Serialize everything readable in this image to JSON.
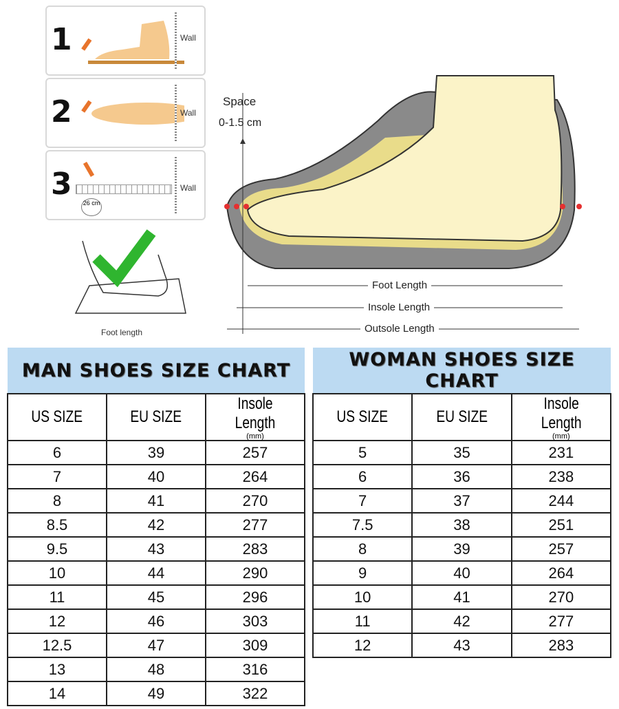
{
  "steps": [
    {
      "number": "1",
      "wall": "Wall"
    },
    {
      "number": "2",
      "wall": "Wall"
    },
    {
      "number": "3",
      "wall": "Wall",
      "ruler_reading": "26 cm"
    }
  ],
  "foot_length_caption": "Foot length",
  "diagram": {
    "space_label": "Space",
    "space_range": "0-1.5 cm",
    "foot_length": "Foot Length",
    "insole_length": "Insole Length",
    "outsole_length": "Outsole Length"
  },
  "colors": {
    "header_bg": "#bcdaf2",
    "check": "#2fb52f",
    "marker": "#e53030",
    "sole": "#8a8a8a",
    "foot": "#fbf3c8"
  },
  "man": {
    "title": "MAN SHOES SIZE CHART",
    "headers": [
      "US SIZE",
      "EU SIZE",
      "Insole Length"
    ],
    "unit": "(mm)",
    "rows": [
      [
        "6",
        "39",
        "257"
      ],
      [
        "7",
        "40",
        "264"
      ],
      [
        "8",
        "41",
        "270"
      ],
      [
        "8.5",
        "42",
        "277"
      ],
      [
        "9.5",
        "43",
        "283"
      ],
      [
        "10",
        "44",
        "290"
      ],
      [
        "11",
        "45",
        "296"
      ],
      [
        "12",
        "46",
        "303"
      ],
      [
        "12.5",
        "47",
        "309"
      ],
      [
        "13",
        "48",
        "316"
      ],
      [
        "14",
        "49",
        "322"
      ]
    ]
  },
  "woman": {
    "title": "WOMAN SHOES SIZE CHART",
    "headers": [
      "US SIZE",
      "EU SIZE",
      "Insole Length"
    ],
    "unit": "(mm)",
    "rows": [
      [
        "5",
        "35",
        "231"
      ],
      [
        "6",
        "36",
        "238"
      ],
      [
        "7",
        "37",
        "244"
      ],
      [
        "7.5",
        "38",
        "251"
      ],
      [
        "8",
        "39",
        "257"
      ],
      [
        "9",
        "40",
        "264"
      ],
      [
        "10",
        "41",
        "270"
      ],
      [
        "11",
        "42",
        "277"
      ],
      [
        "12",
        "43",
        "283"
      ]
    ]
  }
}
